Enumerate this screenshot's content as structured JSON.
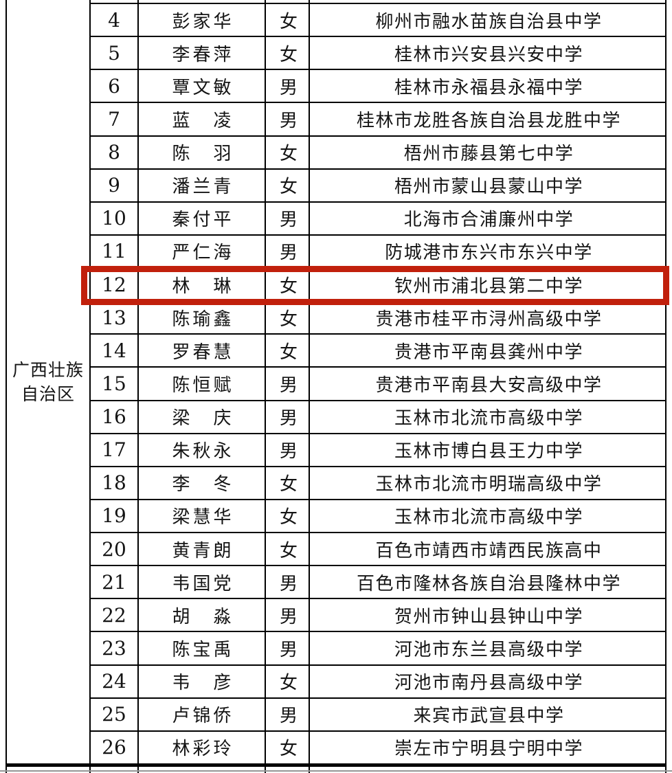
{
  "region": {
    "label": "广西壮族自治区"
  },
  "table": {
    "rows": [
      {
        "no": "4",
        "name": "彭家华",
        "gender": "女",
        "school": "柳州市融水苗族自治县中学",
        "highlighted": false
      },
      {
        "no": "5",
        "name": "李春萍",
        "gender": "女",
        "school": "桂林市兴安县兴安中学",
        "highlighted": false
      },
      {
        "no": "6",
        "name": "覃文敏",
        "gender": "男",
        "school": "桂林市永福县永福中学",
        "highlighted": false
      },
      {
        "no": "7",
        "name": "蓝　凌",
        "gender": "男",
        "school": "桂林市龙胜各族自治县龙胜中学",
        "highlighted": false
      },
      {
        "no": "8",
        "name": "陈　羽",
        "gender": "女",
        "school": "梧州市藤县第七中学",
        "highlighted": false
      },
      {
        "no": "9",
        "name": "潘兰青",
        "gender": "女",
        "school": "梧州市蒙山县蒙山中学",
        "highlighted": false
      },
      {
        "no": "10",
        "name": "秦付平",
        "gender": "男",
        "school": "北海市合浦廉州中学",
        "highlighted": false
      },
      {
        "no": "11",
        "name": "严仁海",
        "gender": "男",
        "school": "防城港市东兴市东兴中学",
        "highlighted": false
      },
      {
        "no": "12",
        "name": "林　琳",
        "gender": "女",
        "school": "钦州市浦北县第二中学",
        "highlighted": true
      },
      {
        "no": "13",
        "name": "陈瑜鑫",
        "gender": "女",
        "school": "贵港市桂平市浔州高级中学",
        "highlighted": false
      },
      {
        "no": "14",
        "name": "罗春慧",
        "gender": "女",
        "school": "贵港市平南县龚州中学",
        "highlighted": false
      },
      {
        "no": "15",
        "name": "陈恒赋",
        "gender": "男",
        "school": "贵港市平南县大安高级中学",
        "highlighted": false
      },
      {
        "no": "16",
        "name": "梁　庆",
        "gender": "男",
        "school": "玉林市北流市高级中学",
        "highlighted": false
      },
      {
        "no": "17",
        "name": "朱秋永",
        "gender": "男",
        "school": "玉林市博白县王力中学",
        "highlighted": false
      },
      {
        "no": "18",
        "name": "李　冬",
        "gender": "女",
        "school": "玉林市北流市明瑞高级中学",
        "highlighted": false
      },
      {
        "no": "19",
        "name": "梁慧华",
        "gender": "女",
        "school": "玉林市北流市高级中学",
        "highlighted": false
      },
      {
        "no": "20",
        "name": "黄青朗",
        "gender": "女",
        "school": "百色市靖西市靖西民族高中",
        "highlighted": false
      },
      {
        "no": "21",
        "name": "韦国党",
        "gender": "男",
        "school": "百色市隆林各族自治县隆林中学",
        "highlighted": false
      },
      {
        "no": "22",
        "name": "胡　淼",
        "gender": "男",
        "school": "贺州市钟山县钟山中学",
        "highlighted": false
      },
      {
        "no": "23",
        "name": "陈宝禹",
        "gender": "男",
        "school": "河池市东兰县高级中学",
        "highlighted": false
      },
      {
        "no": "24",
        "name": "韦　彦",
        "gender": "女",
        "school": "河池市南丹县高级中学",
        "highlighted": false
      },
      {
        "no": "25",
        "name": "卢锦侨",
        "gender": "男",
        "school": "来宾市武宣县中学",
        "highlighted": false
      },
      {
        "no": "26",
        "name": "林彩玲",
        "gender": "女",
        "school": "崇左市宁明县宁明中学",
        "highlighted": false
      }
    ]
  },
  "highlight": {
    "row_no": "12",
    "color": "#c1200c"
  },
  "colors": {
    "table_line": "#000000",
    "highlight_red": "#c1200c"
  }
}
